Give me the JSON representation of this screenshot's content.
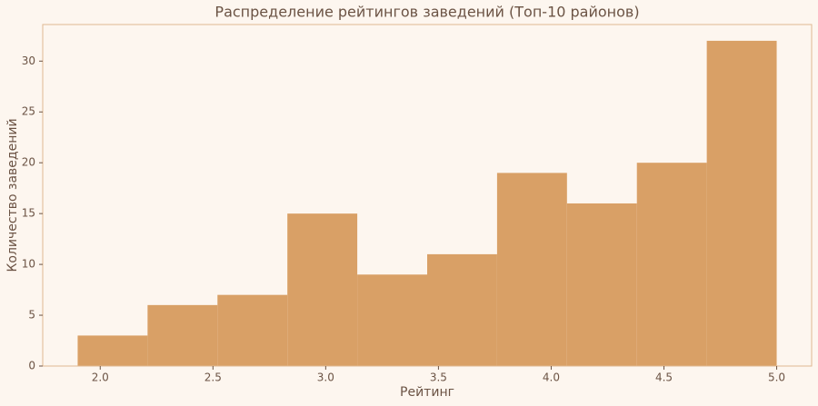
{
  "chart_data": {
    "type": "histogram",
    "title": "Распределение рейтингов заведений (Топ-10 районов)",
    "x_label": "Рейтинг",
    "y_label": "Количество заведений",
    "bins": [
      1.9,
      2.21,
      2.52,
      2.83,
      3.14,
      3.45,
      3.76,
      4.07,
      4.38,
      4.69,
      5.0
    ],
    "values": [
      3,
      6,
      7,
      15,
      9,
      11,
      19,
      16,
      20,
      32
    ],
    "color": "#d9a066",
    "xlim": [
      1.745,
      5.155
    ],
    "xticks": [
      {
        "value": 2,
        "label": "2.0"
      },
      {
        "value": 2.5,
        "label": "2.5"
      },
      {
        "value": 3,
        "label": "3.0"
      },
      {
        "value": 3.5,
        "label": "3.5"
      },
      {
        "value": 4,
        "label": "4.0"
      },
      {
        "value": 4.5,
        "label": "4.5"
      },
      {
        "value": 5,
        "label": "5.0"
      }
    ],
    "ylim": [
      0,
      33.6
    ],
    "yticks": [
      0,
      5,
      10,
      15,
      20,
      25,
      30
    ],
    "grid": false
  }
}
